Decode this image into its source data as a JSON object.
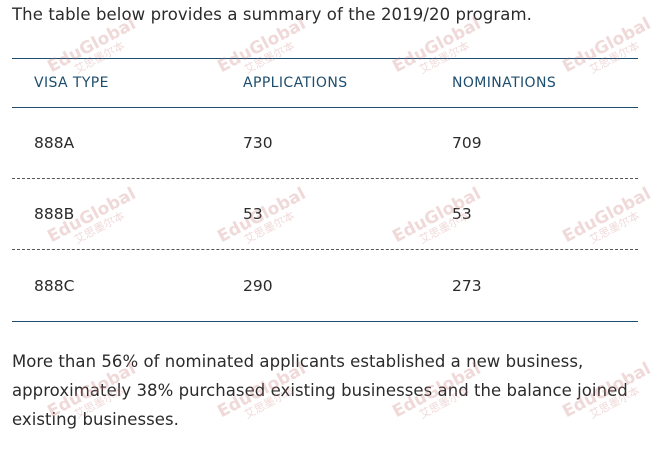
{
  "intro_text": "The table below provides a summary of the 2019/20 program.",
  "table": {
    "headers": [
      "VISA TYPE",
      "APPLICATIONS",
      "NOMINATIONS"
    ],
    "rows": [
      [
        "888A",
        "730",
        "709"
      ],
      [
        "888B",
        "53",
        "53"
      ],
      [
        "888C",
        "290",
        "273"
      ]
    ]
  },
  "summary_text": "More than 56% of nominated applicants established a new business, approximately 38% purchased existing businesses and the balance joined existing businesses.",
  "watermark": {
    "brand": "EduGlobal",
    "subtext": "艾思墨尔本"
  },
  "colors": {
    "header_text": "#1e4e6e",
    "rule": "#1e4e6e",
    "body_text": "#2b2b2b"
  }
}
